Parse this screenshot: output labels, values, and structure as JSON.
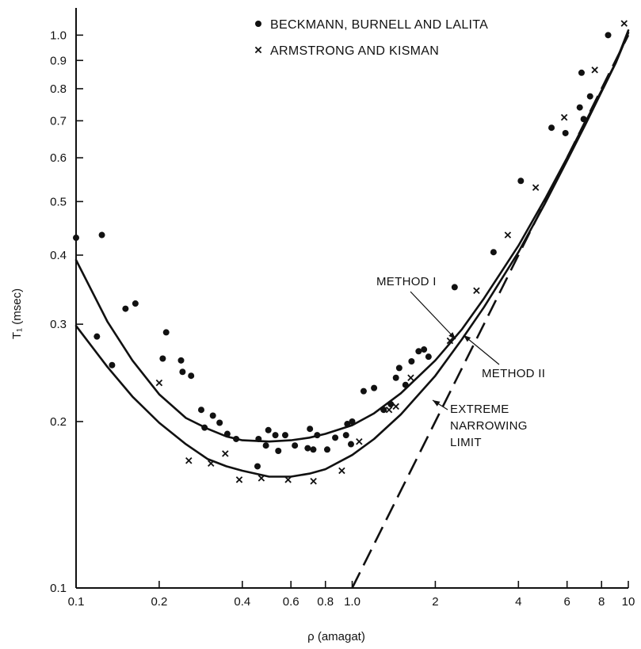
{
  "chart_data": {
    "type": "scatter",
    "xlabel": "ρ (amagat)",
    "ylabel": "T₁ (msec)",
    "x_scale": "log",
    "y_scale": "log",
    "xlim": [
      0.1,
      10
    ],
    "ylim": [
      0.1,
      1.12
    ],
    "grid": false,
    "legend_position": "top",
    "x_ticks": [
      {
        "value": 0.1,
        "label": "0.1"
      },
      {
        "value": 0.2,
        "label": "0.2"
      },
      {
        "value": 0.4,
        "label": "0.4"
      },
      {
        "value": 0.6,
        "label": "0.6"
      },
      {
        "value": 0.8,
        "label": "0.8"
      },
      {
        "value": 1.0,
        "label": "1.0"
      },
      {
        "value": 2,
        "label": "2"
      },
      {
        "value": 4,
        "label": "4"
      },
      {
        "value": 6,
        "label": "6"
      },
      {
        "value": 8,
        "label": "8"
      },
      {
        "value": 10,
        "label": "10"
      }
    ],
    "y_ticks": [
      {
        "value": 0.1,
        "label": "0.1"
      },
      {
        "value": 0.2,
        "label": "0.2"
      },
      {
        "value": 0.3,
        "label": "0.3"
      },
      {
        "value": 0.4,
        "label": "0.4"
      },
      {
        "value": 0.5,
        "label": "0.5"
      },
      {
        "value": 0.6,
        "label": "0.6"
      },
      {
        "value": 0.7,
        "label": "0.7"
      },
      {
        "value": 0.8,
        "label": "0.8"
      },
      {
        "value": 0.9,
        "label": "0.9"
      },
      {
        "value": 1.0,
        "label": "1.0"
      }
    ],
    "legend": [
      {
        "marker": "dot",
        "label": "BECKMANN, BURNELL AND LALITA"
      },
      {
        "marker": "x",
        "label": "ARMSTRONG AND KISMAN"
      }
    ],
    "series": [
      {
        "name": "BECKMANN, BURNELL AND LALITA",
        "marker": "dot",
        "points": [
          [
            0.1,
            0.43
          ],
          [
            0.124,
            0.435
          ],
          [
            0.119,
            0.285
          ],
          [
            0.135,
            0.253
          ],
          [
            0.151,
            0.32
          ],
          [
            0.164,
            0.327
          ],
          [
            0.206,
            0.26
          ],
          [
            0.212,
            0.29
          ],
          [
            0.24,
            0.258
          ],
          [
            0.243,
            0.246
          ],
          [
            0.261,
            0.242
          ],
          [
            0.284,
            0.21
          ],
          [
            0.292,
            0.195
          ],
          [
            0.313,
            0.205
          ],
          [
            0.331,
            0.199
          ],
          [
            0.353,
            0.19
          ],
          [
            0.38,
            0.186
          ],
          [
            0.454,
            0.166
          ],
          [
            0.458,
            0.186
          ],
          [
            0.487,
            0.181
          ],
          [
            0.497,
            0.193
          ],
          [
            0.527,
            0.189
          ],
          [
            0.54,
            0.177
          ],
          [
            0.572,
            0.189
          ],
          [
            0.62,
            0.181
          ],
          [
            0.69,
            0.179
          ],
          [
            0.703,
            0.194
          ],
          [
            0.723,
            0.178
          ],
          [
            0.747,
            0.189
          ],
          [
            0.812,
            0.178
          ],
          [
            0.868,
            0.187
          ],
          [
            0.95,
            0.189
          ],
          [
            0.96,
            0.198
          ],
          [
            0.99,
            0.182
          ],
          [
            1.0,
            0.2
          ],
          [
            1.1,
            0.227
          ],
          [
            1.2,
            0.23
          ],
          [
            1.3,
            0.21
          ],
          [
            1.38,
            0.215
          ],
          [
            1.44,
            0.24
          ],
          [
            1.48,
            0.25
          ],
          [
            1.56,
            0.233
          ],
          [
            1.64,
            0.257
          ],
          [
            1.74,
            0.268
          ],
          [
            1.82,
            0.27
          ],
          [
            1.89,
            0.262
          ],
          [
            2.35,
            0.35
          ],
          [
            3.25,
            0.405
          ],
          [
            4.08,
            0.545
          ],
          [
            5.27,
            0.68
          ],
          [
            5.92,
            0.665
          ],
          [
            6.67,
            0.74
          ],
          [
            6.77,
            0.855
          ],
          [
            6.89,
            0.705
          ],
          [
            7.27,
            0.775
          ],
          [
            8.45,
            1.0
          ]
        ]
      },
      {
        "name": "ARMSTRONG AND KISMAN",
        "marker": "x",
        "points": [
          [
            0.2,
            0.235
          ],
          [
            0.256,
            0.17
          ],
          [
            0.308,
            0.168
          ],
          [
            0.347,
            0.175
          ],
          [
            0.39,
            0.157
          ],
          [
            0.469,
            0.158
          ],
          [
            0.586,
            0.157
          ],
          [
            0.724,
            0.156
          ],
          [
            0.917,
            0.163
          ],
          [
            1.06,
            0.184
          ],
          [
            1.36,
            0.21
          ],
          [
            1.44,
            0.213
          ],
          [
            1.63,
            0.24
          ],
          [
            2.26,
            0.28
          ],
          [
            2.82,
            0.345
          ],
          [
            3.66,
            0.435
          ],
          [
            4.62,
            0.53
          ],
          [
            5.86,
            0.71
          ],
          [
            7.56,
            0.865
          ],
          [
            9.66,
            1.05
          ]
        ]
      }
    ],
    "curves": [
      {
        "name": "METHOD I",
        "style": "solid",
        "points": [
          [
            0.1,
            0.392
          ],
          [
            0.13,
            0.303
          ],
          [
            0.16,
            0.258
          ],
          [
            0.2,
            0.224
          ],
          [
            0.25,
            0.203
          ],
          [
            0.3,
            0.194
          ],
          [
            0.35,
            0.188
          ],
          [
            0.4,
            0.185
          ],
          [
            0.5,
            0.184
          ],
          [
            0.6,
            0.185
          ],
          [
            0.7,
            0.187
          ],
          [
            0.8,
            0.19
          ],
          [
            1.0,
            0.197
          ],
          [
            1.2,
            0.207
          ],
          [
            1.5,
            0.225
          ],
          [
            2.0,
            0.258
          ],
          [
            2.5,
            0.294
          ],
          [
            3.0,
            0.334
          ],
          [
            4.0,
            0.416
          ],
          [
            5.0,
            0.506
          ],
          [
            6.0,
            0.6
          ],
          [
            7.0,
            0.697
          ],
          [
            8.0,
            0.794
          ],
          [
            9.0,
            0.892
          ],
          [
            10.0,
            1.02
          ]
        ]
      },
      {
        "name": "METHOD II",
        "style": "solid",
        "points": [
          [
            0.1,
            0.298
          ],
          [
            0.13,
            0.251
          ],
          [
            0.16,
            0.222
          ],
          [
            0.2,
            0.199
          ],
          [
            0.25,
            0.182
          ],
          [
            0.3,
            0.171
          ],
          [
            0.35,
            0.166
          ],
          [
            0.4,
            0.163
          ],
          [
            0.5,
            0.159
          ],
          [
            0.6,
            0.159
          ],
          [
            0.7,
            0.161
          ],
          [
            0.8,
            0.164
          ],
          [
            1.0,
            0.174
          ],
          [
            1.2,
            0.186
          ],
          [
            1.5,
            0.206
          ],
          [
            2.0,
            0.242
          ],
          [
            2.5,
            0.282
          ],
          [
            3.0,
            0.322
          ],
          [
            4.0,
            0.405
          ],
          [
            5.0,
            0.497
          ],
          [
            6.0,
            0.593
          ],
          [
            7.0,
            0.69
          ],
          [
            8.0,
            0.79
          ],
          [
            9.0,
            0.89
          ],
          [
            10.0,
            1.01
          ]
        ]
      },
      {
        "name": "EXTREME NARROWING LIMIT",
        "style": "dashed",
        "points": [
          [
            1.0,
            0.1
          ],
          [
            10.0,
            1.0
          ]
        ]
      }
    ],
    "annotations": [
      {
        "label": "METHOD I",
        "lines": [
          "METHOD I"
        ],
        "target": "METHOD I"
      },
      {
        "label": "METHOD II",
        "lines": [
          "METHOD II"
        ],
        "target": "METHOD II"
      },
      {
        "label": "EXTREME NARROWING LIMIT",
        "lines": [
          "EXTREME",
          "NARROWING",
          "LIMIT"
        ],
        "target": "EXTREME NARROWING LIMIT"
      }
    ]
  }
}
